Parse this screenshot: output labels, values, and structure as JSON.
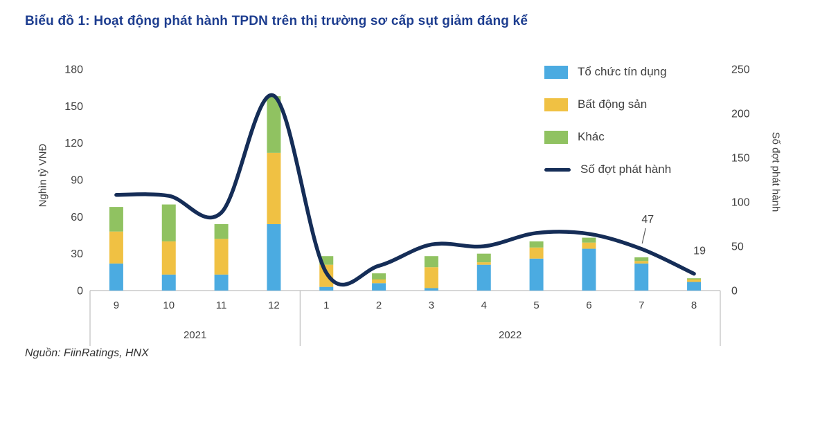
{
  "source": "Nguồn: FiinRatings, HNX",
  "colors": {
    "title": "#1D3D8F",
    "axis_text": "#404040",
    "axis_line": "#BFBFBF",
    "annotation_leader": "#595959"
  },
  "chart_data": {
    "type": "bar",
    "stacked": true,
    "title": "Biểu đồ 1: Hoạt động phát hành TPDN trên thị trường sơ cấp sụt giảm đáng kể",
    "categories": [
      "9",
      "10",
      "11",
      "12",
      "1",
      "2",
      "3",
      "4",
      "5",
      "6",
      "7",
      "8"
    ],
    "category_groups": [
      {
        "label": "2021",
        "count": 4
      },
      {
        "label": "2022",
        "count": 8
      }
    ],
    "ylabel_left": "Nghìn tỷ VNĐ",
    "ylabel_right": "Số đợt phát hành",
    "ylim_left": [
      0,
      180
    ],
    "ylim_right": [
      0,
      250
    ],
    "yticks_left": [
      0,
      30,
      60,
      90,
      120,
      150,
      180
    ],
    "yticks_right": [
      0,
      50,
      100,
      150,
      200,
      250
    ],
    "grid": false,
    "legend_position": "top-right-inside",
    "series": [
      {
        "name": "Tổ chức tín dụng",
        "type": "bar",
        "axis": "left",
        "color": "#4BABE1",
        "values": [
          22,
          13,
          13,
          54,
          3,
          6,
          2,
          21,
          26,
          34,
          22,
          7
        ]
      },
      {
        "name": "Bất động sản",
        "type": "bar",
        "axis": "left",
        "color": "#F0C143",
        "values": [
          26,
          27,
          29,
          58,
          18,
          3,
          17,
          2,
          9,
          5,
          2,
          2
        ]
      },
      {
        "name": "Khác",
        "type": "bar",
        "axis": "left",
        "color": "#90C261",
        "values": [
          20,
          30,
          12,
          46,
          7,
          5,
          9,
          7,
          5,
          4,
          3,
          1
        ]
      },
      {
        "name": "Số đợt phát hành",
        "type": "line",
        "axis": "right",
        "color": "#152D57",
        "values": [
          108,
          107,
          88,
          220,
          20,
          28,
          52,
          50,
          65,
          64,
          47,
          19
        ]
      }
    ],
    "annotations": [
      {
        "text": "47",
        "category": "7",
        "category_index": 10,
        "value": 47,
        "axis": "right",
        "leader": true
      },
      {
        "text": "19",
        "category": "8",
        "category_index": 11,
        "value": 19,
        "axis": "right",
        "leader": false
      }
    ]
  }
}
